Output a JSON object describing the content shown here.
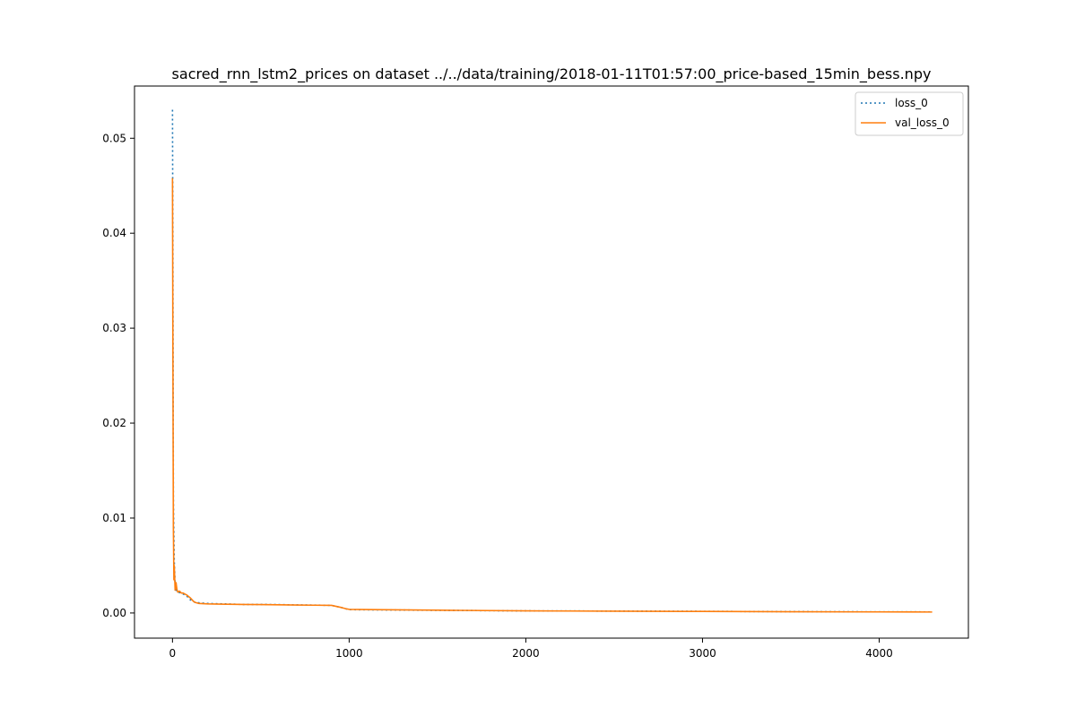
{
  "chart_data": {
    "type": "line",
    "title": "sacred_rnn_lstm2_prices on dataset ../../data/training/2018-01-11T01:57:00_price-based_15min_bess.npy",
    "xlabel": "",
    "ylabel": "",
    "xlim": [
      -215,
      4505
    ],
    "ylim": [
      -0.00265,
      0.0555
    ],
    "xticks": [
      0,
      1000,
      2000,
      3000,
      4000
    ],
    "xtick_labels": [
      "0",
      "1000",
      "2000",
      "3000",
      "4000"
    ],
    "yticks": [
      0.0,
      0.01,
      0.02,
      0.03,
      0.04,
      0.05
    ],
    "ytick_labels": [
      "0.00",
      "0.01",
      "0.02",
      "0.03",
      "0.04",
      "0.05"
    ],
    "grid": false,
    "legend_position": "upper right",
    "series": [
      {
        "name": "loss_0",
        "style": "dotted",
        "color": "#1f77b4",
        "x": [
          0,
          2,
          5,
          10,
          15,
          20,
          30,
          50,
          80,
          100,
          130,
          200,
          300,
          400,
          500,
          600,
          700,
          800,
          900,
          950,
          1000,
          1500,
          2000,
          2500,
          3000,
          3500,
          4000,
          4300
        ],
        "y": [
          0.053,
          0.04,
          0.012,
          0.0055,
          0.003,
          0.0024,
          0.0022,
          0.0021,
          0.0018,
          0.0014,
          0.0011,
          0.001,
          0.00095,
          0.0009,
          0.0009,
          0.00088,
          0.00085,
          0.00083,
          0.0008,
          0.0006,
          0.00035,
          0.00028,
          0.00022,
          0.0002,
          0.00017,
          0.00014,
          0.00012,
          0.00011
        ]
      },
      {
        "name": "val_loss_0",
        "style": "solid",
        "color": "#ff7f0e",
        "x": [
          0,
          2,
          5,
          8,
          10,
          15,
          20,
          25,
          30,
          40,
          50,
          60,
          80,
          100,
          120,
          130,
          150,
          200,
          300,
          400,
          500,
          600,
          700,
          800,
          900,
          950,
          980,
          1000,
          1200,
          1500,
          2000,
          2500,
          3000,
          3500,
          4000,
          4300
        ],
        "y": [
          0.0458,
          0.03,
          0.009,
          0.0035,
          0.005,
          0.0024,
          0.0032,
          0.0025,
          0.0022,
          0.0023,
          0.0021,
          0.0021,
          0.0019,
          0.0016,
          0.0012,
          0.0011,
          0.001,
          0.00095,
          0.00092,
          0.0009,
          0.00088,
          0.00086,
          0.00084,
          0.00082,
          0.0008,
          0.0006,
          0.00045,
          0.00038,
          0.00034,
          0.00029,
          0.00022,
          0.00019,
          0.00016,
          0.00013,
          0.00011,
          0.0001
        ]
      }
    ]
  }
}
